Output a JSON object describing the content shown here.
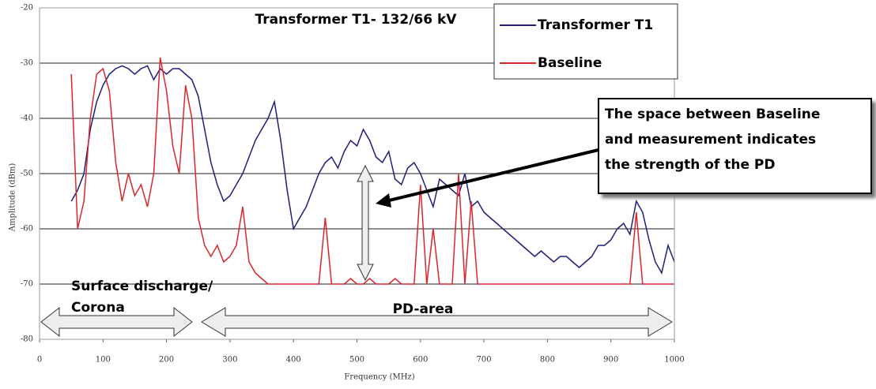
{
  "chart_data": {
    "type": "line",
    "title": "Transformer T1- 132/66 kV",
    "x_label": "Frequency (MHz)",
    "y_label": "Amplitude (dBm)",
    "x": [
      50,
      60,
      70,
      80,
      90,
      100,
      110,
      120,
      130,
      140,
      150,
      160,
      170,
      180,
      190,
      200,
      210,
      220,
      230,
      240,
      250,
      260,
      270,
      280,
      290,
      300,
      310,
      320,
      330,
      340,
      350,
      360,
      370,
      380,
      390,
      400,
      410,
      420,
      430,
      440,
      450,
      460,
      470,
      480,
      490,
      500,
      510,
      520,
      530,
      540,
      550,
      560,
      570,
      580,
      590,
      600,
      610,
      620,
      630,
      640,
      650,
      660,
      670,
      680,
      690,
      700,
      710,
      720,
      730,
      740,
      750,
      760,
      770,
      780,
      790,
      800,
      810,
      820,
      830,
      840,
      850,
      860,
      870,
      880,
      890,
      900,
      910,
      920,
      930,
      940,
      950,
      960,
      970,
      980,
      990,
      1000
    ],
    "series": [
      {
        "name": "Transformer T1",
        "color": "#1f1f7a",
        "values": [
          -55,
          -53,
          -50,
          -42,
          -37,
          -34,
          -32,
          -31,
          -30.5,
          -31,
          -32,
          -31,
          -30.5,
          -33,
          -31,
          -32,
          -31,
          -31,
          -32,
          -33,
          -36,
          -42,
          -48,
          -52,
          -55,
          -54,
          -52,
          -50,
          -47,
          -44,
          -42,
          -40,
          -37,
          -44,
          -53,
          -60,
          -58,
          -56,
          -53,
          -50,
          -48,
          -47,
          -49,
          -46,
          -44,
          -45,
          -42,
          -44,
          -47,
          -48,
          -46,
          -51,
          -52,
          -49,
          -48,
          -50,
          -53,
          -56,
          -51,
          -52,
          -53,
          -54,
          -50,
          -56,
          -55,
          -57,
          -58,
          -59,
          -60,
          -61,
          -62,
          -63,
          -64,
          -65,
          -64,
          -65,
          -66,
          -65,
          -65,
          -66,
          -67,
          -66,
          -65,
          -63,
          -63,
          -62,
          -60,
          -59,
          -61,
          -55,
          -57,
          -62,
          -66,
          -68,
          -63,
          -66
        ]
      },
      {
        "name": "Baseline",
        "color": "#d9262b",
        "values": [
          -32,
          -60,
          -55,
          -40,
          -32,
          -31,
          -35,
          -48,
          -55,
          -50,
          -54,
          -52,
          -56,
          -50,
          -29,
          -35,
          -45,
          -50,
          -34,
          -40,
          -58,
          -63,
          -65,
          -63,
          -66,
          -65,
          -63,
          -56,
          -66,
          -68,
          -69,
          -70,
          -70,
          -70,
          -70,
          -70,
          -70,
          -70,
          -70,
          -70,
          -58,
          -70,
          -70,
          -70,
          -69,
          -70,
          -70,
          -69,
          -70,
          -70,
          -70,
          -69,
          -70,
          -70,
          -70,
          -52,
          -70,
          -60,
          -70,
          -70,
          -70,
          -50,
          -70,
          -55,
          -70,
          -70,
          -70,
          -70,
          -70,
          -70,
          -70,
          -70,
          -70,
          -70,
          -70,
          -70,
          -70,
          -70,
          -70,
          -70,
          -70,
          -70,
          -70,
          -70,
          -70,
          -70,
          -70,
          -70,
          -70,
          -57,
          -70,
          -70,
          -70,
          -70,
          -70,
          -70
        ]
      }
    ],
    "xlim": [
      0,
      1000
    ],
    "xticks": [
      0,
      100,
      200,
      300,
      400,
      500,
      600,
      700,
      800,
      900,
      1000
    ],
    "ylim": [
      -80,
      -20
    ],
    "yticks": [
      -80,
      -70,
      -60,
      -50,
      -40,
      -30,
      -20
    ],
    "grid": true,
    "annotation": [
      "The space between Baseline",
      "and measurement indicates",
      "the strength of the PD"
    ],
    "regions": [
      {
        "label": [
          "Surface discharge/",
          "Corona"
        ]
      },
      {
        "label": [
          "PD-area"
        ]
      }
    ]
  }
}
